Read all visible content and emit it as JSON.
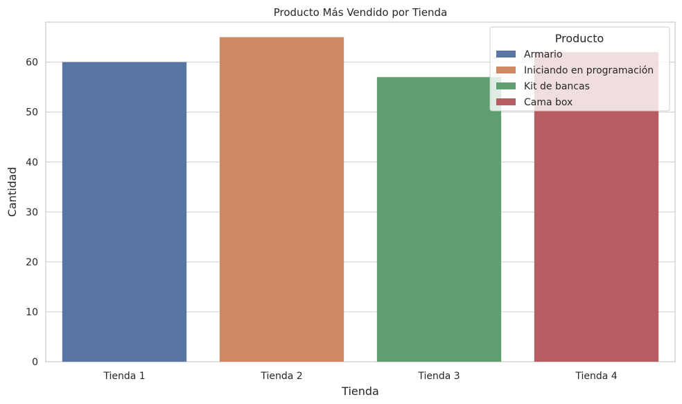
{
  "chart_data": {
    "type": "bar",
    "title": "Producto Más Vendido por Tienda",
    "xlabel": "Tienda",
    "ylabel": "Cantidad",
    "categories": [
      "Tienda 1",
      "Tienda 2",
      "Tienda 3",
      "Tienda 4"
    ],
    "values": [
      60,
      65,
      57,
      62
    ],
    "products": [
      "Armario",
      "Iniciando en programación",
      "Kit de bancas",
      "Cama box"
    ],
    "colors": [
      "#5875a4",
      "#cc8963",
      "#5f9e6e",
      "#b55d60"
    ],
    "ylim": [
      0,
      68
    ],
    "yticks": [
      0,
      10,
      20,
      30,
      40,
      50,
      60
    ],
    "grid": true,
    "legend": {
      "title": "Producto",
      "placement": "top-right",
      "entries": [
        "Armario",
        "Iniciando en programación",
        "Kit de bancas",
        "Cama box"
      ]
    }
  }
}
